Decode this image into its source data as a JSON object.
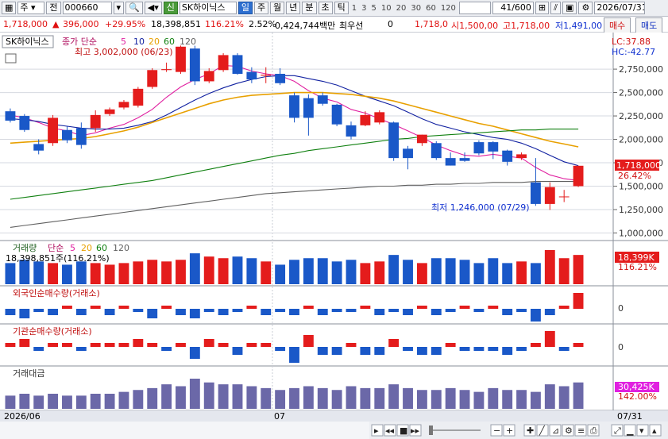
{
  "toolbar": {
    "period_type": "주",
    "prev_label": "전",
    "code": "000660",
    "credit_badge": "신",
    "stock_name": "SK하이닉스",
    "periods": [
      "일",
      "주",
      "월",
      "년",
      "분",
      "초",
      "틱"
    ],
    "active_period": "일",
    "intervals": [
      "1",
      "3",
      "5",
      "10",
      "20",
      "30",
      "60",
      "120"
    ],
    "counter": "41/600",
    "date": "2026/07/31"
  },
  "info": {
    "price": "1,718,000",
    "change": "396,000",
    "change_pct": "+29.95%",
    "volume": "18,398,851",
    "vol_ratio": "116.21%",
    "turnover": "2.52%",
    "amount": "0,424,744백만",
    "priority_label": "최우선",
    "priority_value": "0",
    "last_value": "1,718,0",
    "open": "시1,500,00",
    "high": "고1,718,00",
    "low": "저1,491,00",
    "buy_btn": "매수",
    "sell_btn": "매도"
  },
  "labels": {
    "price_tag": "SK하이닉스",
    "ma_legend_prefix": "종가 단순",
    "ma_periods": [
      "5",
      "10",
      "20",
      "60",
      "120"
    ],
    "ma_colors": [
      "#e020a0",
      "#1020a0",
      "#e8a000",
      "#108010",
      "#606060"
    ],
    "high_note": "최고 3,002,000 (06/23)",
    "low_note": "최저 1,246,000 (07/29)",
    "lc": "LC:37.88",
    "hc": "HC:-42.77",
    "last_price_tag": "1,718,000",
    "last_pct_tag": "26.42%",
    "vol_title": "거래량",
    "vol_ma_prefix": "단순",
    "vol_ma_periods": [
      "5",
      "20",
      "60",
      "120"
    ],
    "vol_value": "18,398,851주(116.21%)",
    "vol_tag": "18,399K",
    "vol_pct_tag": "116.21%",
    "foreign_title": "외국인순매수량(거래소)",
    "inst_title": "기관순매수량(거래소)",
    "amount_title": "거래대금",
    "amount_tag": "30,425K",
    "amount_pct_tag": "142.00%",
    "zero": "0",
    "x_start": "2026/06",
    "x_mid": "07",
    "x_end": "07/31"
  },
  "chart_data": {
    "type": "candlestick",
    "y_ticks": [
      1000000,
      1250000,
      1500000,
      1750000,
      2000000,
      2250000,
      2500000,
      2750000
    ],
    "y_range": [
      970000,
      3090000
    ],
    "candles": [
      {
        "o": 2300000,
        "h": 2330000,
        "l": 2180000,
        "c": 2200000
      },
      {
        "o": 2250000,
        "h": 2270000,
        "l": 2080000,
        "c": 2100000
      },
      {
        "o": 1950000,
        "h": 2000000,
        "l": 1840000,
        "c": 1880000
      },
      {
        "o": 1960000,
        "h": 2260000,
        "l": 1930000,
        "c": 2230000
      },
      {
        "o": 2100000,
        "h": 2140000,
        "l": 1960000,
        "c": 1990000
      },
      {
        "o": 2120000,
        "h": 2180000,
        "l": 1900000,
        "c": 1940000
      },
      {
        "o": 2120000,
        "h": 2310000,
        "l": 2080000,
        "c": 2260000
      },
      {
        "o": 2270000,
        "h": 2340000,
        "l": 2250000,
        "c": 2320000
      },
      {
        "o": 2340000,
        "h": 2420000,
        "l": 2320000,
        "c": 2400000
      },
      {
        "o": 2360000,
        "h": 2560000,
        "l": 2340000,
        "c": 2540000
      },
      {
        "o": 2560000,
        "h": 2760000,
        "l": 2540000,
        "c": 2740000
      },
      {
        "o": 2740000,
        "h": 2820000,
        "l": 2720000,
        "c": 2750000
      },
      {
        "o": 2720000,
        "h": 3002000,
        "l": 2700000,
        "c": 2990000
      },
      {
        "o": 2970000,
        "h": 3000000,
        "l": 2580000,
        "c": 2620000
      },
      {
        "o": 2620000,
        "h": 2760000,
        "l": 2600000,
        "c": 2730000
      },
      {
        "o": 2740000,
        "h": 2920000,
        "l": 2720000,
        "c": 2900000
      },
      {
        "o": 2900000,
        "h": 2920000,
        "l": 2690000,
        "c": 2700000
      },
      {
        "o": 2720000,
        "h": 2770000,
        "l": 2600000,
        "c": 2640000
      },
      {
        "o": 2680000,
        "h": 2770000,
        "l": 2600000,
        "c": 2690000
      },
      {
        "o": 2700000,
        "h": 2760000,
        "l": 2580000,
        "c": 2600000
      },
      {
        "o": 2470000,
        "h": 2500000,
        "l": 2180000,
        "c": 2230000
      },
      {
        "o": 2440000,
        "h": 2480000,
        "l": 2040000,
        "c": 2230000
      },
      {
        "o": 2470000,
        "h": 2500000,
        "l": 2360000,
        "c": 2380000
      },
      {
        "o": 2370000,
        "h": 2380000,
        "l": 2140000,
        "c": 2160000
      },
      {
        "o": 2150000,
        "h": 2190000,
        "l": 2000000,
        "c": 2030000
      },
      {
        "o": 2150000,
        "h": 2300000,
        "l": 2140000,
        "c": 2260000
      },
      {
        "o": 2180000,
        "h": 2310000,
        "l": 2160000,
        "c": 2290000
      },
      {
        "o": 2180000,
        "h": 2190000,
        "l": 1770000,
        "c": 1800000
      },
      {
        "o": 1900000,
        "h": 1930000,
        "l": 1680000,
        "c": 1800000
      },
      {
        "o": 1960000,
        "h": 2050000,
        "l": 1930000,
        "c": 2050000
      },
      {
        "o": 1960000,
        "h": 1980000,
        "l": 1780000,
        "c": 1800000
      },
      {
        "o": 1800000,
        "h": 1860000,
        "l": 1720000,
        "c": 1720000
      },
      {
        "o": 1800000,
        "h": 1860000,
        "l": 1760000,
        "c": 1770000
      },
      {
        "o": 1970000,
        "h": 1990000,
        "l": 1830000,
        "c": 1850000
      },
      {
        "o": 1970000,
        "h": 1980000,
        "l": 1790000,
        "c": 1870000
      },
      {
        "o": 1880000,
        "h": 1890000,
        "l": 1720000,
        "c": 1760000
      },
      {
        "o": 1800000,
        "h": 1860000,
        "l": 1780000,
        "c": 1840000
      },
      {
        "o": 1540000,
        "h": 1800000,
        "l": 1290000,
        "c": 1310000
      },
      {
        "o": 1310000,
        "h": 1540000,
        "l": 1246000,
        "c": 1490000
      },
      {
        "o": 1390000,
        "h": 1460000,
        "l": 1330000,
        "c": 1390000
      },
      {
        "o": 1500000,
        "h": 1718000,
        "l": 1491000,
        "c": 1718000
      }
    ],
    "ma5": [
      2260000,
      2230000,
      2180000,
      2120000,
      2090000,
      2040000,
      2070000,
      2120000,
      2160000,
      2230000,
      2320000,
      2450000,
      2560000,
      2640000,
      2700000,
      2790000,
      2780000,
      2730000,
      2700000,
      2680000,
      2620000,
      2520000,
      2440000,
      2400000,
      2320000,
      2280000,
      2220000,
      2160000,
      2090000,
      2020000,
      1940000,
      1880000,
      1830000,
      1820000,
      1840000,
      1820000,
      1800000,
      1700000,
      1620000,
      1580000,
      1560000
    ],
    "ma10": [
      2220000,
      2210000,
      2190000,
      2160000,
      2140000,
      2120000,
      2110000,
      2110000,
      2120000,
      2150000,
      2190000,
      2260000,
      2340000,
      2420000,
      2490000,
      2550000,
      2600000,
      2640000,
      2670000,
      2680000,
      2680000,
      2650000,
      2620000,
      2580000,
      2520000,
      2460000,
      2410000,
      2360000,
      2290000,
      2220000,
      2160000,
      2120000,
      2080000,
      2050000,
      2020000,
      2000000,
      1960000,
      1900000,
      1830000,
      1760000,
      1720000
    ],
    "ma20": [
      1960000,
      1970000,
      1980000,
      1990000,
      2000000,
      2010000,
      2030000,
      2060000,
      2090000,
      2130000,
      2180000,
      2230000,
      2280000,
      2330000,
      2380000,
      2420000,
      2450000,
      2470000,
      2480000,
      2490000,
      2500000,
      2500000,
      2500000,
      2490000,
      2480000,
      2460000,
      2440000,
      2410000,
      2370000,
      2330000,
      2290000,
      2250000,
      2210000,
      2170000,
      2140000,
      2100000,
      2060000,
      2020000,
      1980000,
      1950000,
      1920000
    ],
    "ma60": [
      1360000,
      1380000,
      1400000,
      1420000,
      1440000,
      1460000,
      1480000,
      1500000,
      1520000,
      1540000,
      1560000,
      1590000,
      1620000,
      1650000,
      1680000,
      1710000,
      1740000,
      1770000,
      1800000,
      1830000,
      1850000,
      1880000,
      1900000,
      1920000,
      1940000,
      1960000,
      1980000,
      2000000,
      2010000,
      2030000,
      2040000,
      2050000,
      2060000,
      2070000,
      2080000,
      2090000,
      2100000,
      2100000,
      2110000,
      2110000,
      2110000
    ],
    "ma120": [
      1060000,
      1080000,
      1100000,
      1120000,
      1140000,
      1160000,
      1180000,
      1200000,
      1220000,
      1240000,
      1260000,
      1280000,
      1300000,
      1320000,
      1340000,
      1360000,
      1380000,
      1400000,
      1420000,
      1430000,
      1440000,
      1450000,
      1460000,
      1470000,
      1480000,
      1490000,
      1500000,
      1500000,
      1510000,
      1510000,
      1520000,
      1520000,
      1530000,
      1530000,
      1540000,
      1540000,
      1540000,
      1550000,
      1550000,
      1550000,
      1550000
    ],
    "volume": [
      13,
      15,
      14,
      13,
      12,
      14,
      13,
      12,
      13,
      14,
      15,
      14,
      15,
      19,
      17,
      16,
      17,
      16,
      14,
      12,
      15,
      16,
      16,
      14,
      15,
      13,
      14,
      18,
      15,
      13,
      16,
      16,
      15,
      13,
      16,
      13,
      14,
      13,
      21,
      16,
      18
    ],
    "foreign": [
      -2,
      -3,
      -1,
      -2,
      1,
      -2,
      1,
      -2,
      1,
      -1,
      -3,
      1,
      -2,
      -3,
      -1,
      -2,
      -1,
      1,
      -2,
      -1,
      -2,
      1,
      -2,
      -1,
      -1,
      1,
      -2,
      -1,
      -2,
      1,
      -2,
      -1,
      1,
      -1,
      1,
      -2,
      -1,
      -4,
      -2,
      1,
      5
    ],
    "institution": [
      1,
      2,
      -1,
      1,
      1,
      -1,
      1,
      1,
      1,
      2,
      1,
      -1,
      1,
      -3,
      2,
      1,
      -2,
      1,
      1,
      -1,
      -4,
      3,
      -2,
      -2,
      1,
      -2,
      -2,
      2,
      -1,
      -2,
      -2,
      1,
      -1,
      -1,
      -1,
      -2,
      -1,
      1,
      4,
      -1,
      1
    ],
    "amount": [
      7,
      8,
      7,
      8,
      7,
      7,
      8,
      8,
      9,
      10,
      11,
      13,
      12,
      16,
      14,
      13,
      13,
      12,
      11,
      10,
      11,
      12,
      11,
      10,
      12,
      11,
      11,
      13,
      11,
      10,
      10,
      11,
      10,
      9,
      11,
      10,
      10,
      9,
      13,
      12,
      14
    ]
  },
  "colors": {
    "up": "#e41c1c",
    "down": "#1a58c8",
    "grid": "#d6d9e0",
    "vol_up": "#e41c1c",
    "vol_down": "#1a58c8",
    "amount": "#6b68a8"
  }
}
